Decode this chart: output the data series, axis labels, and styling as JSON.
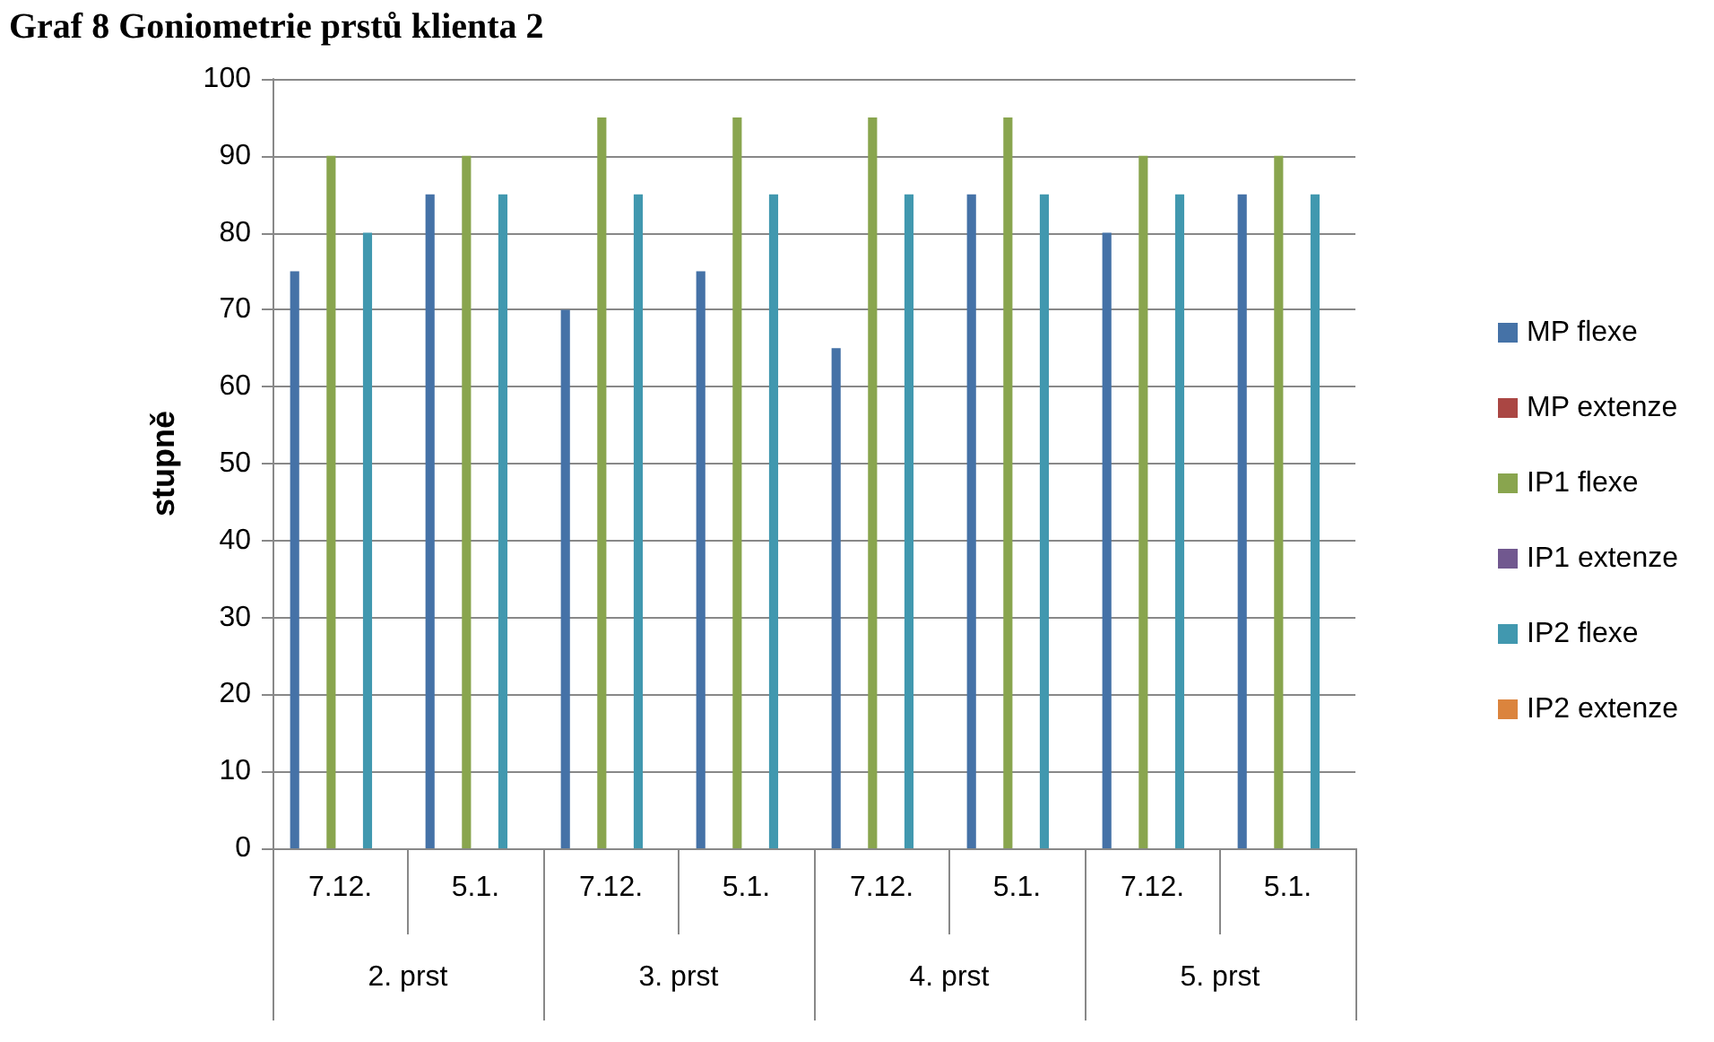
{
  "chart_data": {
    "type": "bar",
    "title": "Graf 8 Goniometrie prstů klienta 2",
    "ylabel": "stupně",
    "categories": [
      "7.12.",
      "5.1.",
      "7.12.",
      "5.1.",
      "7.12.",
      "5.1.",
      "7.12.",
      "5.1."
    ],
    "annotations": [
      "2. prst",
      "3. prst",
      "4. prst",
      "5. prst"
    ],
    "series": [
      {
        "name": "MP flexe",
        "color": "#4572a7",
        "values": [
          75,
          85,
          70,
          75,
          65,
          85,
          80,
          85
        ]
      },
      {
        "name": "MP extenze",
        "color": "#aa4643",
        "values": [
          0,
          0,
          0,
          0,
          0,
          0,
          0,
          0
        ]
      },
      {
        "name": "IP1 flexe",
        "color": "#89a54e",
        "values": [
          90,
          90,
          95,
          95,
          95,
          95,
          90,
          90
        ]
      },
      {
        "name": "IP1 extenze",
        "color": "#71588f",
        "values": [
          0,
          0,
          0,
          0,
          0,
          0,
          0,
          0
        ]
      },
      {
        "name": "IP2 flexe",
        "color": "#4198af",
        "values": [
          80,
          85,
          85,
          85,
          85,
          85,
          85,
          85
        ]
      },
      {
        "name": "IP2 extenze",
        "color": "#db843d",
        "values": [
          0,
          0,
          0,
          0,
          0,
          0,
          0,
          0
        ]
      }
    ],
    "ylim": [
      0,
      100
    ],
    "yticks": [
      0,
      10,
      20,
      30,
      40,
      50,
      60,
      70,
      80,
      90,
      100
    ],
    "grid": "y",
    "legend": "right"
  }
}
